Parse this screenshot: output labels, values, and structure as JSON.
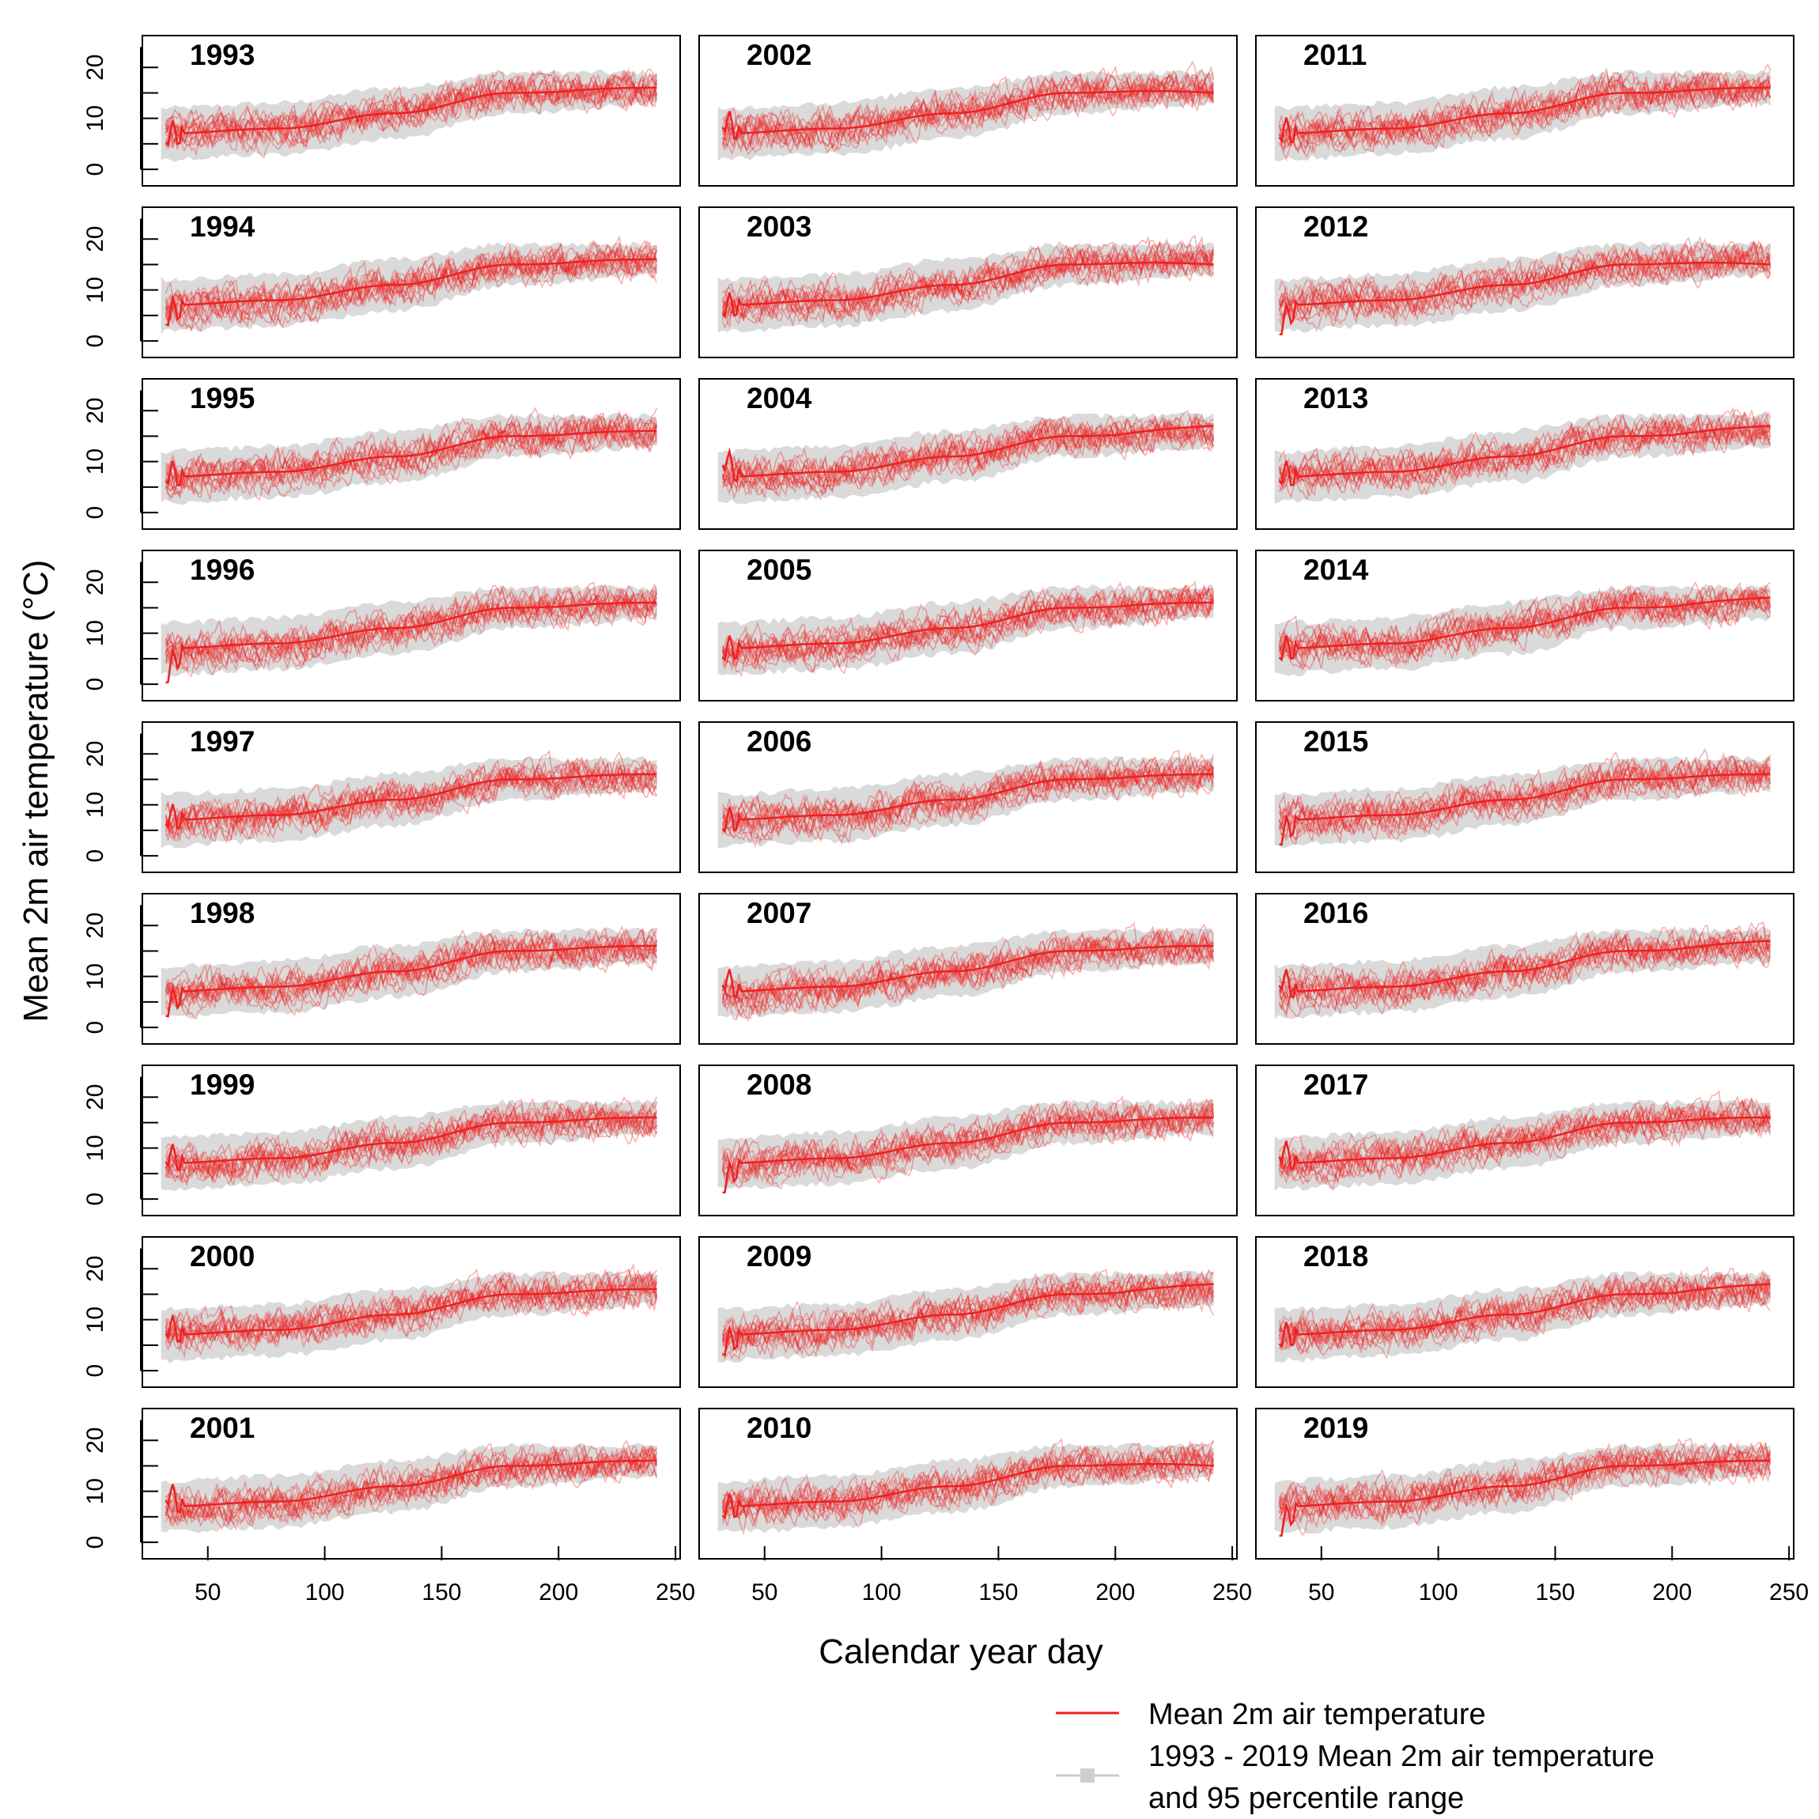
{
  "chart_data": {
    "type": "line",
    "layout": "small-multiples 9 rows x 3 columns",
    "xlabel": "Calendar year day",
    "ylabel": "Mean 2m air temperature (°C)",
    "xlim": [
      30,
      245
    ],
    "ylim": [
      0,
      25
    ],
    "x_ticks": [
      50,
      100,
      150,
      200,
      250
    ],
    "y_ticks": [
      0,
      10,
      20
    ],
    "grid": false,
    "series_color": "#ee2020",
    "band_color": "#dadada",
    "panels": [
      {
        "year": "1993",
        "start_value": 7,
        "end_value": 16
      },
      {
        "year": "1994",
        "start_value": 5,
        "end_value": 16
      },
      {
        "year": "1995",
        "start_value": 8,
        "end_value": 16
      },
      {
        "year": "1996",
        "start_value": 2,
        "end_value": 16
      },
      {
        "year": "1997",
        "start_value": 8,
        "end_value": 16
      },
      {
        "year": "1998",
        "start_value": 4,
        "end_value": 16
      },
      {
        "year": "1999",
        "start_value": 9,
        "end_value": 16
      },
      {
        "year": "2000",
        "start_value": 9,
        "end_value": 16
      },
      {
        "year": "2001",
        "start_value": 10,
        "end_value": 16
      },
      {
        "year": "2002",
        "start_value": 10,
        "end_value": 15
      },
      {
        "year": "2003",
        "start_value": 7,
        "end_value": 15
      },
      {
        "year": "2004",
        "start_value": 11,
        "end_value": 17
      },
      {
        "year": "2005",
        "start_value": 7,
        "end_value": 16
      },
      {
        "year": "2006",
        "start_value": 7,
        "end_value": 16
      },
      {
        "year": "2007",
        "start_value": 10,
        "end_value": 16
      },
      {
        "year": "2008",
        "start_value": 3,
        "end_value": 16
      },
      {
        "year": "2009",
        "start_value": 5,
        "end_value": 17
      },
      {
        "year": "2010",
        "start_value": 7,
        "end_value": 15
      },
      {
        "year": "2011",
        "start_value": 8,
        "end_value": 16
      },
      {
        "year": "2012",
        "start_value": 3,
        "end_value": 15
      },
      {
        "year": "2013",
        "start_value": 8,
        "end_value": 17
      },
      {
        "year": "2014",
        "start_value": 7,
        "end_value": 17
      },
      {
        "year": "2015",
        "start_value": 4,
        "end_value": 16
      },
      {
        "year": "2016",
        "start_value": 10,
        "end_value": 17
      },
      {
        "year": "2017",
        "start_value": 10,
        "end_value": 16
      },
      {
        "year": "2018",
        "start_value": 7,
        "end_value": 17
      },
      {
        "year": "2019",
        "start_value": 3,
        "end_value": 16
      }
    ],
    "climatology": {
      "x": [
        30,
        80,
        130,
        180,
        245
      ],
      "mean": [
        7,
        8,
        11,
        15,
        16
      ],
      "band_halfwidth": [
        5,
        5,
        5,
        4,
        3
      ]
    }
  },
  "legend": {
    "entries": [
      {
        "label_lines": [
          "Mean 2m air temperature"
        ],
        "symbol": "red-line"
      },
      {
        "label_lines": [
          "1993 - 2019 Mean 2m air temperature",
          "and 95 percentile range"
        ],
        "symbol": "grey-band"
      }
    ]
  }
}
